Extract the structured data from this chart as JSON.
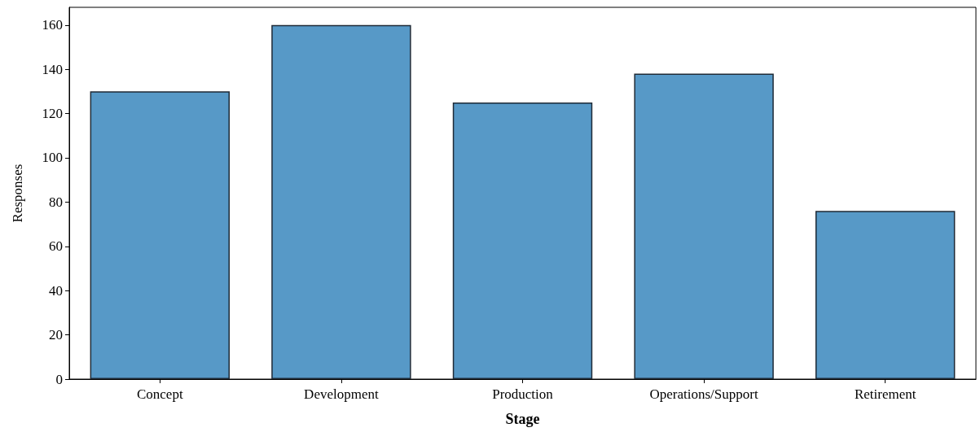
{
  "chart_data": {
    "type": "bar",
    "xlabel": "Stage",
    "ylabel": "Responses",
    "categories": [
      "Concept",
      "Development",
      "Production",
      "Operations/Support",
      "Retirement"
    ],
    "values": [
      130,
      160,
      125,
      138,
      76
    ],
    "color": "#5799c7",
    "ylim": [
      0,
      168
    ],
    "yticks": [
      0,
      20,
      40,
      60,
      80,
      100,
      120,
      140,
      160
    ],
    "grid": false
  }
}
